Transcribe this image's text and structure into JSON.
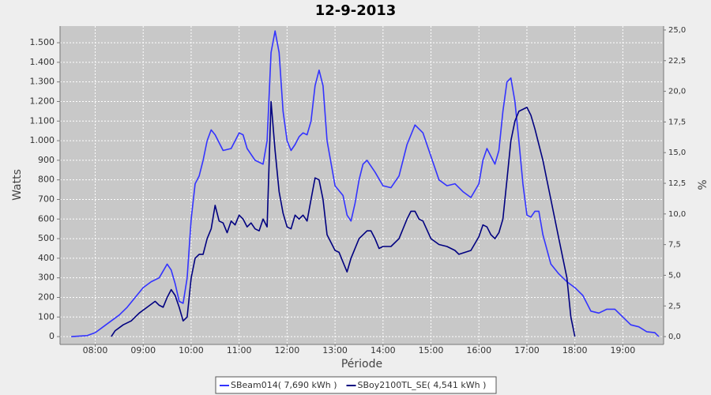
{
  "chart_data": {
    "type": "line",
    "title": "12-9-2013",
    "x_label": "Période",
    "y_label": "Watts",
    "y2_label": "%",
    "xlim": [
      436,
      1191
    ],
    "xticks": [
      {
        "value": 480,
        "label": "08:00"
      },
      {
        "value": 540,
        "label": "09:00"
      },
      {
        "value": 600,
        "label": "10:00"
      },
      {
        "value": 660,
        "label": "11:00"
      },
      {
        "value": 720,
        "label": "12:00"
      },
      {
        "value": 780,
        "label": "13:00"
      },
      {
        "value": 840,
        "label": "14:00"
      },
      {
        "value": 900,
        "label": "15:00"
      },
      {
        "value": 960,
        "label": "16:00"
      },
      {
        "value": 1020,
        "label": "17:00"
      },
      {
        "value": 1080,
        "label": "18:00"
      },
      {
        "value": 1140,
        "label": "19:00"
      }
    ],
    "ylim": [
      -40,
      1585
    ],
    "yticks": [
      0,
      100,
      200,
      300,
      400,
      500,
      600,
      700,
      800,
      900,
      {
        "value": 1000,
        "label": "1.000"
      },
      {
        "value": 1100,
        "label": "1.100"
      },
      {
        "value": 1200,
        "label": "1.200"
      },
      {
        "value": 1300,
        "label": "1.300"
      },
      {
        "value": 1400,
        "label": "1.400"
      },
      {
        "value": 1500,
        "label": "1.500"
      }
    ],
    "y2lim": [
      -0.64,
      25.32
    ],
    "y2ticks": [
      {
        "value": 0,
        "label": "0,0"
      },
      {
        "value": 2.5,
        "label": "2,5"
      },
      {
        "value": 5,
        "label": "5,0"
      },
      {
        "value": 7.5,
        "label": "7,5"
      },
      {
        "value": 10,
        "label": "10,0"
      },
      {
        "value": 12.5,
        "label": "12,5"
      },
      {
        "value": 15,
        "label": "15,0"
      },
      {
        "value": 17.5,
        "label": "17,5"
      },
      {
        "value": 20,
        "label": "20,0"
      },
      {
        "value": 22.5,
        "label": "22,5"
      },
      {
        "value": 25,
        "label": "25,0"
      }
    ],
    "grid": true,
    "legend": "bottom",
    "series": [
      {
        "name": "SBeam014( 7,690 kWh )",
        "color": "#3333ff",
        "x": [
          450,
          470,
          480,
          490,
          500,
          510,
          520,
          530,
          540,
          550,
          560,
          570,
          575,
          580,
          585,
          590,
          595,
          600,
          605,
          610,
          615,
          620,
          625,
          630,
          640,
          650,
          660,
          665,
          670,
          680,
          690,
          695,
          700,
          705,
          710,
          715,
          720,
          725,
          730,
          735,
          740,
          745,
          750,
          755,
          760,
          765,
          770,
          780,
          790,
          795,
          800,
          805,
          810,
          815,
          820,
          830,
          840,
          850,
          860,
          870,
          880,
          890,
          900,
          910,
          920,
          930,
          940,
          950,
          960,
          965,
          970,
          975,
          980,
          985,
          990,
          995,
          1000,
          1005,
          1010,
          1015,
          1020,
          1025,
          1030,
          1035,
          1040,
          1050,
          1060,
          1070,
          1080,
          1090,
          1100,
          1110,
          1120,
          1130,
          1140,
          1150,
          1160,
          1170,
          1180,
          1185
        ],
        "values": [
          0,
          5,
          20,
          50,
          80,
          110,
          150,
          200,
          250,
          280,
          300,
          370,
          340,
          270,
          180,
          170,
          300,
          600,
          780,
          820,
          900,
          1000,
          1055,
          1030,
          950,
          960,
          1040,
          1030,
          960,
          900,
          880,
          1000,
          1450,
          1560,
          1450,
          1150,
          1000,
          950,
          980,
          1020,
          1040,
          1030,
          1100,
          1280,
          1360,
          1280,
          1000,
          770,
          720,
          620,
          590,
          680,
          800,
          880,
          900,
          840,
          770,
          760,
          820,
          980,
          1080,
          1040,
          920,
          800,
          770,
          780,
          740,
          710,
          780,
          900,
          960,
          920,
          880,
          950,
          1150,
          1300,
          1320,
          1200,
          1000,
          780,
          620,
          610,
          640,
          640,
          520,
          370,
          320,
          280,
          250,
          210,
          130,
          120,
          140,
          140,
          100,
          60,
          50,
          25,
          20,
          0
        ]
      },
      {
        "name": "SBoy2100TL_SE( 4,541 kWh )",
        "color": "#000080",
        "x": [
          500,
          505,
          515,
          525,
          535,
          545,
          555,
          560,
          565,
          570,
          575,
          580,
          585,
          590,
          595,
          600,
          605,
          610,
          615,
          620,
          625,
          630,
          635,
          640,
          645,
          650,
          655,
          660,
          665,
          670,
          675,
          680,
          685,
          690,
          695,
          700,
          705,
          710,
          715,
          720,
          725,
          730,
          735,
          740,
          745,
          750,
          755,
          760,
          765,
          770,
          780,
          785,
          790,
          795,
          800,
          810,
          820,
          825,
          830,
          835,
          840,
          850,
          860,
          870,
          875,
          880,
          885,
          890,
          900,
          910,
          920,
          930,
          935,
          950,
          960,
          965,
          970,
          975,
          980,
          985,
          990,
          995,
          1000,
          1005,
          1010,
          1015,
          1020,
          1025,
          1030,
          1040,
          1050,
          1060,
          1070,
          1075,
          1080
        ],
        "values": [
          0,
          30,
          60,
          80,
          120,
          150,
          180,
          160,
          150,
          200,
          240,
          210,
          150,
          80,
          100,
          300,
          400,
          420,
          420,
          500,
          550,
          670,
          590,
          580,
          530,
          590,
          570,
          620,
          600,
          560,
          580,
          550,
          540,
          600,
          560,
          1200,
          950,
          740,
          630,
          560,
          550,
          620,
          600,
          620,
          590,
          700,
          810,
          800,
          700,
          520,
          440,
          430,
          380,
          330,
          400,
          500,
          540,
          540,
          500,
          450,
          460,
          460,
          500,
          600,
          640,
          640,
          600,
          590,
          500,
          470,
          460,
          440,
          420,
          440,
          510,
          570,
          560,
          520,
          500,
          530,
          600,
          800,
          1000,
          1100,
          1150,
          1160,
          1170,
          1130,
          1060,
          900,
          700,
          500,
          300,
          100,
          0
        ]
      }
    ]
  }
}
